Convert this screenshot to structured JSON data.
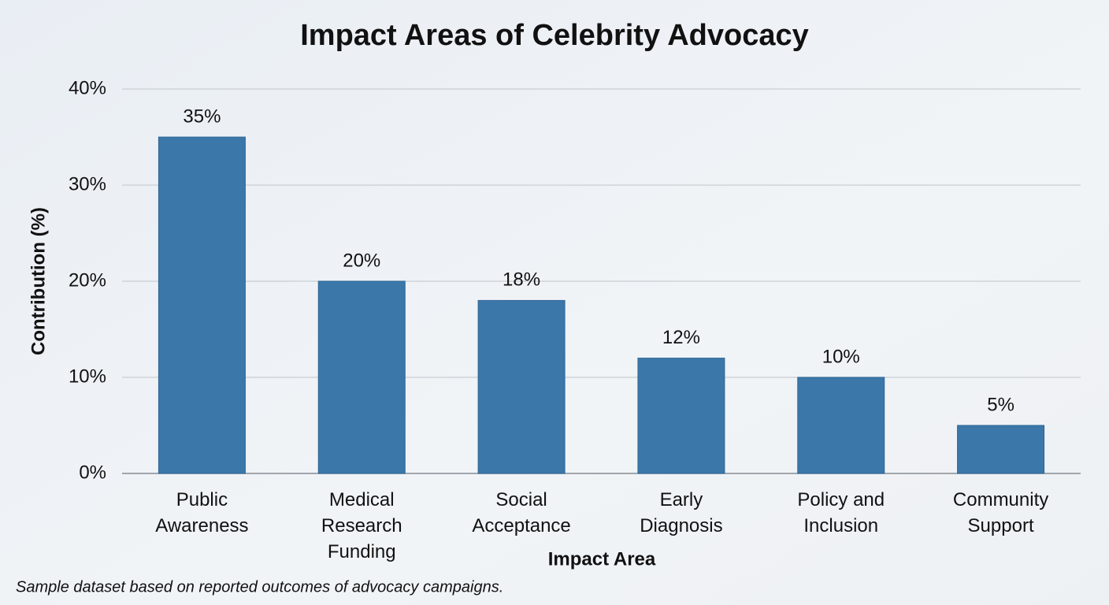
{
  "chart_data": {
    "type": "bar",
    "title": "Impact Areas of Celebrity Advocacy",
    "x_label": "Impact Area",
    "y_label": "Contribution (%)",
    "note": "Sample dataset based on reported outcomes of advocacy campaigns.",
    "categories": [
      "Public\nAwareness",
      "Medical\nResearch\nFunding",
      "Social\nAcceptance",
      "Early\nDiagnosis",
      "Policy and\nInclusion",
      "Community\nSupport"
    ],
    "values": [
      35,
      20,
      18,
      12,
      10,
      5
    ],
    "value_labels": [
      "35%",
      "20%",
      "18%",
      "12%",
      "10%",
      "5%"
    ],
    "color": "#3b77a9",
    "ylim": [
      0,
      40
    ],
    "yticks": [
      {
        "value": 0,
        "label": "0%"
      },
      {
        "value": 10,
        "label": "10%"
      },
      {
        "value": 20,
        "label": "20%"
      },
      {
        "value": 30,
        "label": "30%"
      },
      {
        "value": 40,
        "label": "40%"
      }
    ],
    "grid": true
  }
}
